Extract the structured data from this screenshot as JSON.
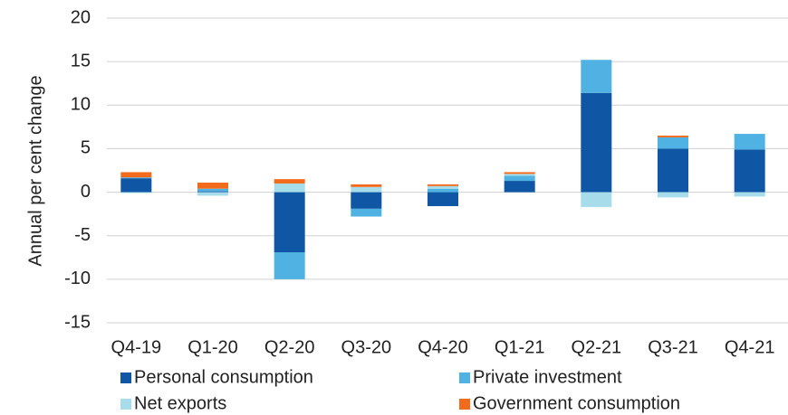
{
  "chart_data": {
    "type": "stacked_bar",
    "y_axis_label": "Annual per cent change",
    "categories": [
      "Q4-19",
      "Q1-20",
      "Q2-20",
      "Q3-20",
      "Q4-20",
      "Q1-21",
      "Q2-21",
      "Q3-21",
      "Q4-21"
    ],
    "series": [
      {
        "name": "Personal consumption",
        "color": "#0f56a5",
        "values": [
          1.6,
          0.1,
          -6.9,
          -1.9,
          -1.6,
          1.3,
          11.4,
          5.0,
          4.9
        ]
      },
      {
        "name": "Private investment",
        "color": "#50b2e2",
        "values": [
          0.1,
          0.3,
          -3.1,
          -0.9,
          0.4,
          0.6,
          3.8,
          1.3,
          1.8
        ]
      },
      {
        "name": "Net exports",
        "color": "#a7dcea",
        "values": [
          -0.1,
          -0.4,
          1.0,
          0.6,
          0.3,
          0.2,
          -1.7,
          -0.6,
          -0.5
        ]
      },
      {
        "name": "Government consumption",
        "color": "#f26b1d",
        "values": [
          0.6,
          0.7,
          0.5,
          0.3,
          0.2,
          0.2,
          0.0,
          0.2,
          0.0
        ]
      }
    ],
    "ylim": [
      -15,
      20
    ],
    "yticks": [
      -15,
      -10,
      -5,
      0,
      5,
      10,
      15,
      20
    ],
    "grid": true
  }
}
